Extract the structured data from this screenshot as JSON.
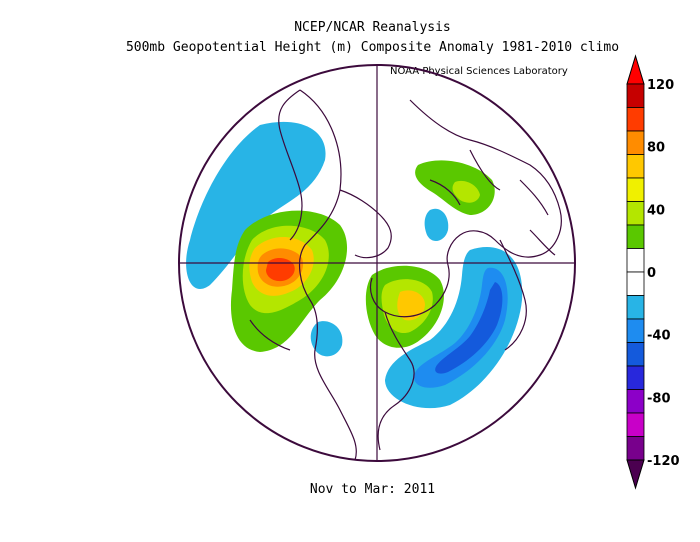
{
  "title_line1": "NCEP/NCAR Reanalysis",
  "title_line2": "500mb Geopotential Height (m) Composite Anomaly 1981-2010 climo",
  "credit": "NOAA Physical Sciences Laboratory",
  "period_label": "Nov to Mar: 2011",
  "colorbar": {
    "ticks": [
      "120",
      "80",
      "40",
      "0",
      "-40",
      "-80",
      "-120"
    ],
    "colors": [
      "#c60000",
      "#ff3c00",
      "#ff8c00",
      "#ffc800",
      "#f0f000",
      "#b4e600",
      "#5ac800",
      "#ffffff",
      "#ffffff",
      "#28b4e6",
      "#1e8cf0",
      "#145adc",
      "#2828dc",
      "#8c00c8",
      "#c800c8",
      "#78008c"
    ]
  },
  "anomaly_regions": [
    {
      "name": "north-pacific-negative",
      "sign": "negative"
    },
    {
      "name": "north-america-ridge",
      "sign": "positive"
    },
    {
      "name": "siberia-positive",
      "sign": "positive"
    },
    {
      "name": "atlantic-europe-positive",
      "sign": "positive"
    },
    {
      "name": "central-pacific-negative",
      "sign": "negative"
    },
    {
      "name": "atlantic-trough",
      "sign": "negative"
    }
  ]
}
